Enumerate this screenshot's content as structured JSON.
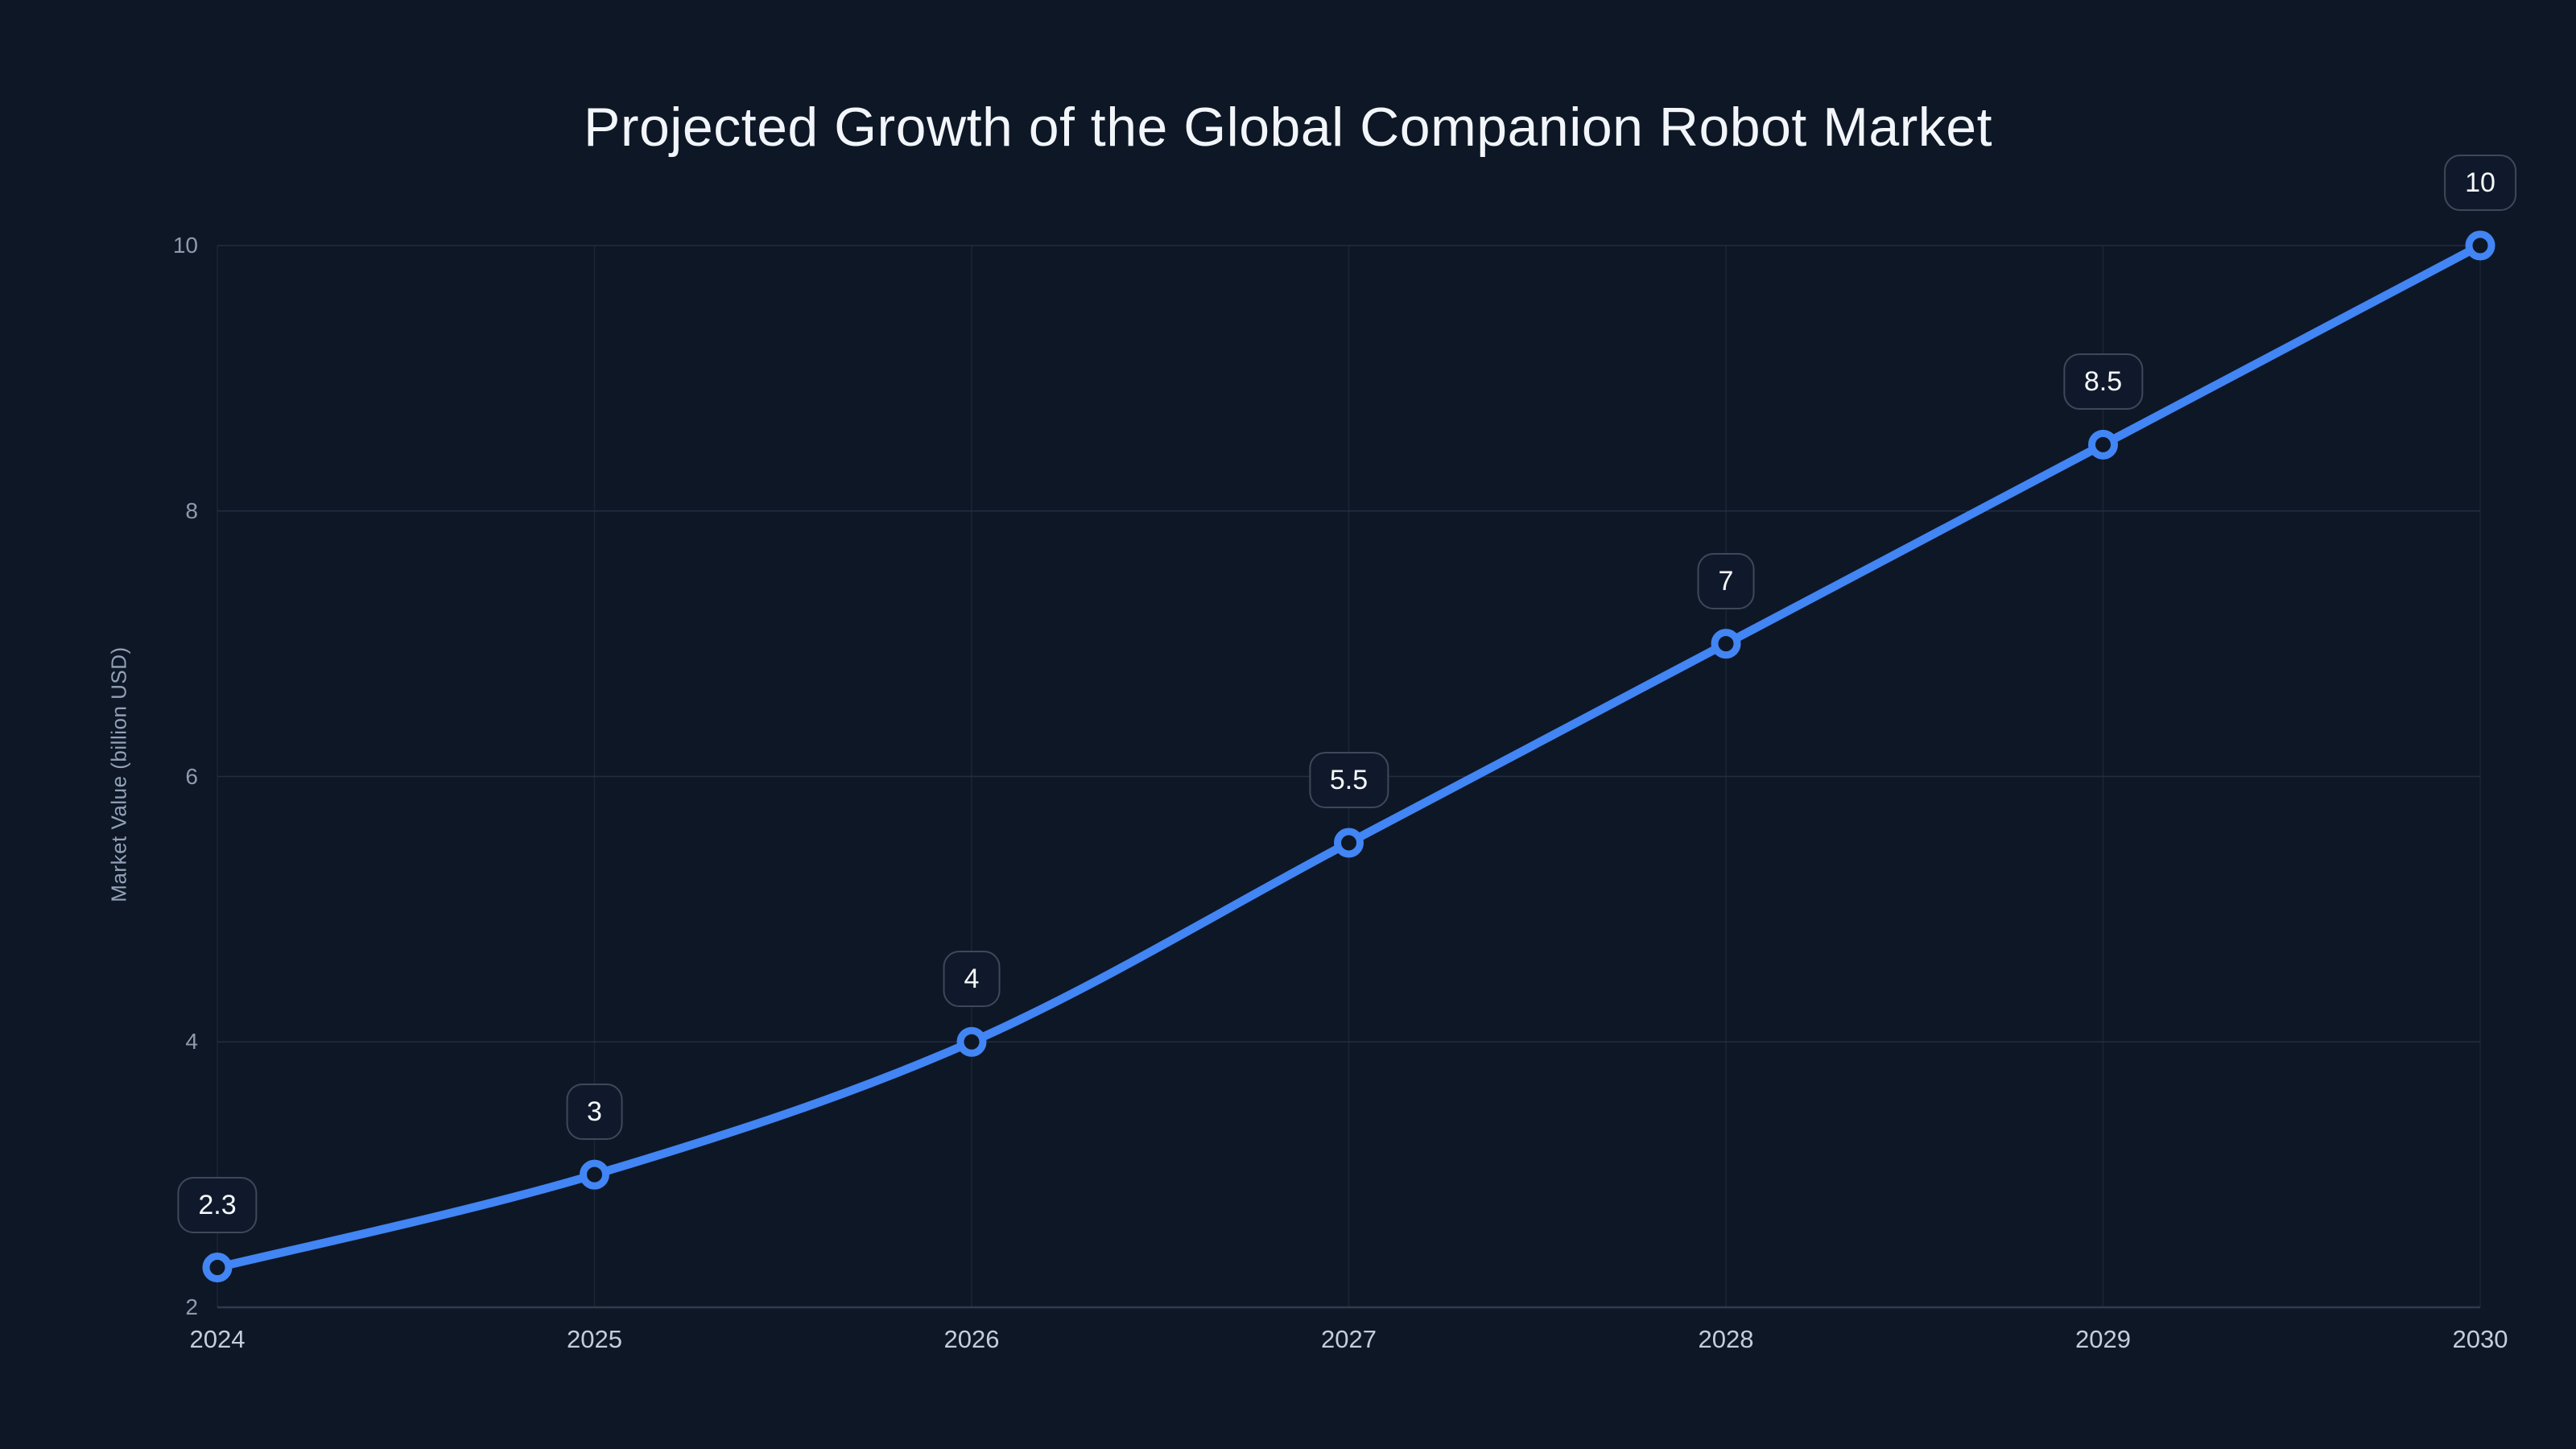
{
  "title": "Projected Growth of the Global Companion Robot Market",
  "chart_data": {
    "type": "line",
    "categories": [
      "2024",
      "2025",
      "2026",
      "2027",
      "2028",
      "2029",
      "2030"
    ],
    "series": [
      {
        "name": "Market Value",
        "values": [
          2.3,
          3,
          4,
          5.5,
          7,
          8.5,
          10
        ]
      }
    ],
    "point_labels": [
      "2.3",
      "3",
      "4",
      "5.5",
      "7",
      "8.5",
      "10"
    ],
    "title": "Projected Growth of the Global Companion Robot Market",
    "xlabel": "",
    "ylabel": "Market Value (billion USD)",
    "ylim": [
      2,
      10
    ],
    "yticks": [
      2,
      4,
      6,
      8,
      10
    ],
    "grid": true,
    "legend": false,
    "line_smoothing": true
  },
  "colors": {
    "background": "#0e1726",
    "line": "#4285f4",
    "marker_fill": "#0e1726",
    "grid_horizontal": "#232d41",
    "grid_vertical": "#1c2535",
    "axis_line": "#2e3a50",
    "title_text": "#f2f6fa",
    "y_tick_text": "#8e9aae",
    "x_tick_text": "#c5cdda",
    "axis_title_text": "#93a2b8",
    "badge_background": "#10192b",
    "badge_border": "#3d4859",
    "badge_text": "#f5f8fb"
  }
}
